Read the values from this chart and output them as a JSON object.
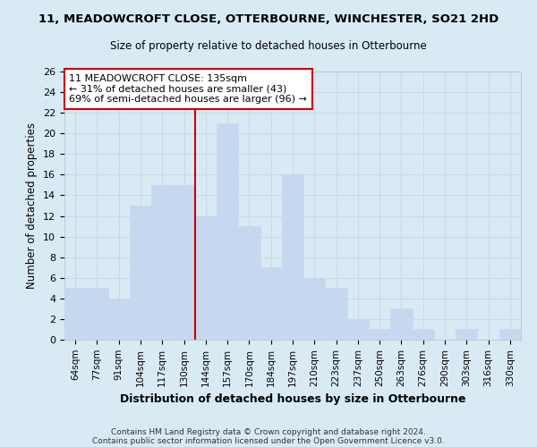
{
  "title": "11, MEADOWCROFT CLOSE, OTTERBOURNE, WINCHESTER, SO21 2HD",
  "subtitle": "Size of property relative to detached houses in Otterbourne",
  "xlabel": "Distribution of detached houses by size in Otterbourne",
  "ylabel": "Number of detached properties",
  "bar_labels": [
    "64sqm",
    "77sqm",
    "91sqm",
    "104sqm",
    "117sqm",
    "130sqm",
    "144sqm",
    "157sqm",
    "170sqm",
    "184sqm",
    "197sqm",
    "210sqm",
    "223sqm",
    "237sqm",
    "250sqm",
    "263sqm",
    "276sqm",
    "290sqm",
    "303sqm",
    "316sqm",
    "330sqm"
  ],
  "bar_values": [
    5,
    5,
    4,
    13,
    15,
    15,
    12,
    21,
    11,
    7,
    16,
    6,
    5,
    2,
    1,
    3,
    1,
    0,
    1,
    0,
    1
  ],
  "bar_color": "#c5d8f0",
  "bar_edge_color": "#c5d8f0",
  "annotation_text": "11 MEADOWCROFT CLOSE: 135sqm\n← 31% of detached houses are smaller (43)\n69% of semi-detached houses are larger (96) →",
  "annotation_box_color": "#ffffff",
  "annotation_box_edge": "#cc0000",
  "vline_color": "#cc0000",
  "vline_x": 5.5,
  "ylim": [
    0,
    26
  ],
  "yticks": [
    0,
    2,
    4,
    6,
    8,
    10,
    12,
    14,
    16,
    18,
    20,
    22,
    24,
    26
  ],
  "grid_color": "#c8daea",
  "background_color": "#daeaf5",
  "footer1": "Contains HM Land Registry data © Crown copyright and database right 2024.",
  "footer2": "Contains public sector information licensed under the Open Government Licence v3.0."
}
